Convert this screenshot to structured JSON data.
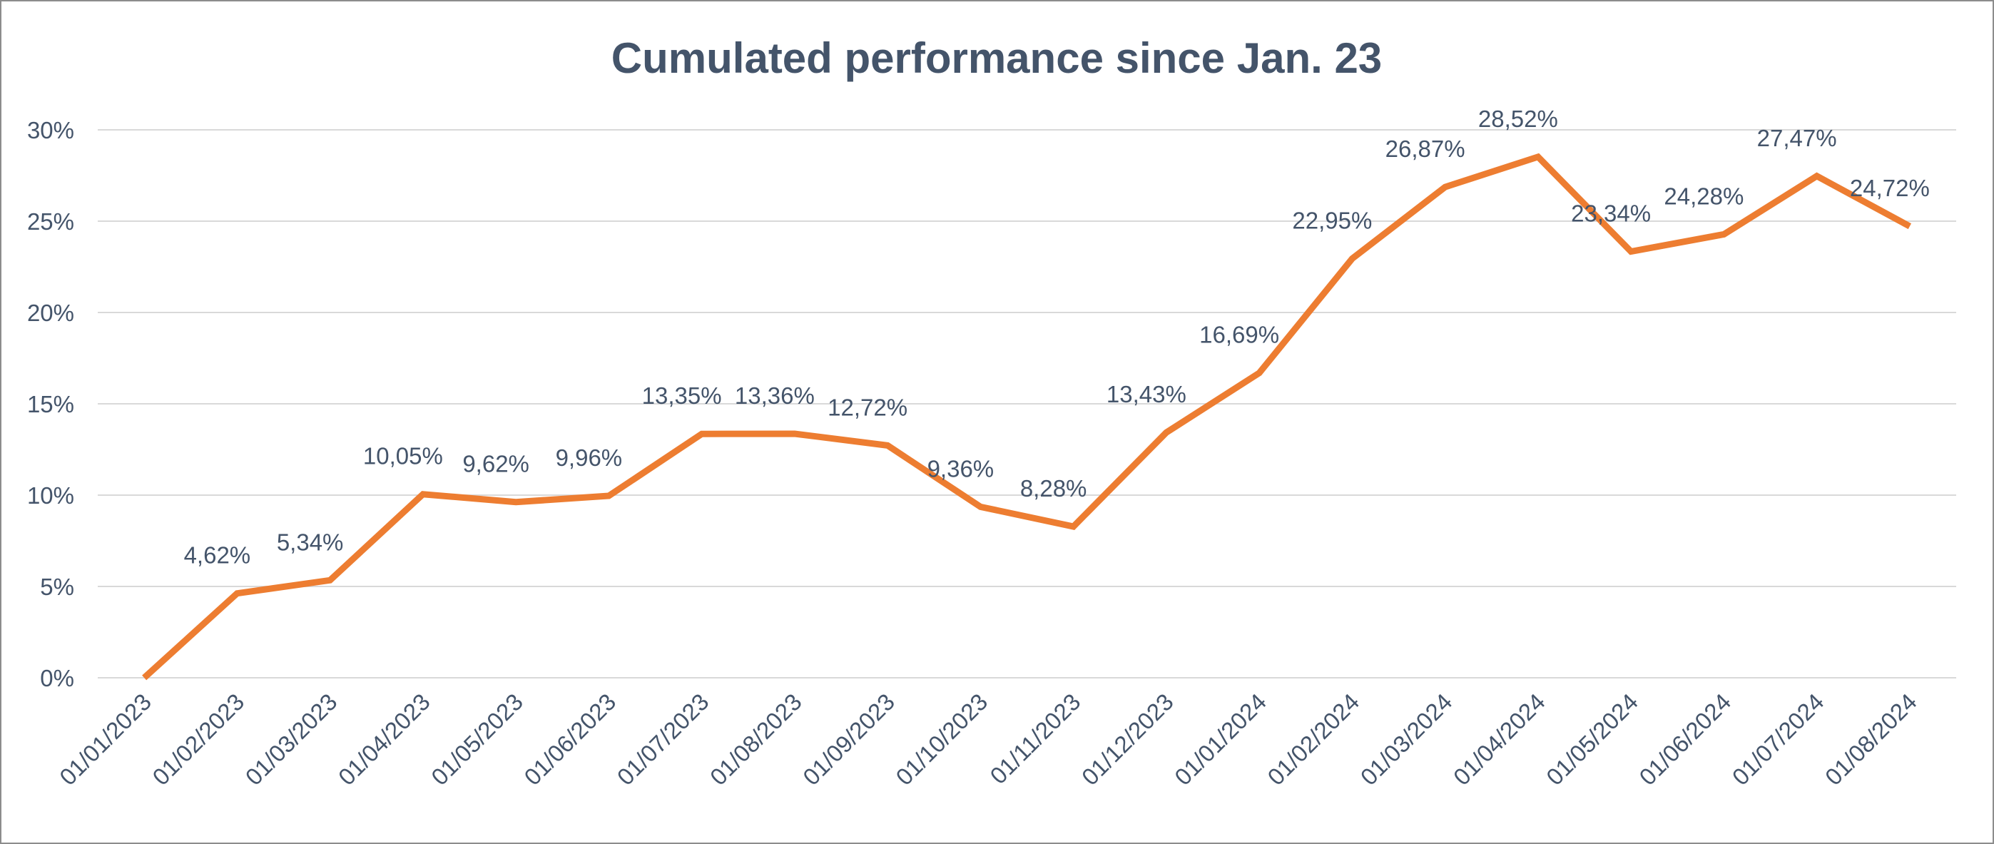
{
  "chart_data": {
    "type": "line",
    "title": "Cumulated performance since Jan. 23",
    "xlabel": "",
    "ylabel": "",
    "ylim": [
      0,
      30
    ],
    "grid": true,
    "legend": "none",
    "y_ticks": [
      "0%",
      "5%",
      "10%",
      "15%",
      "20%",
      "25%",
      "30%"
    ],
    "categories": [
      "01/01/2023",
      "01/02/2023",
      "01/03/2023",
      "01/04/2023",
      "01/05/2023",
      "01/06/2023",
      "01/07/2023",
      "01/08/2023",
      "01/09/2023",
      "01/10/2023",
      "01/11/2023",
      "01/12/2023",
      "01/01/2024",
      "01/02/2024",
      "01/03/2024",
      "01/04/2024",
      "01/05/2024",
      "01/06/2024",
      "01/07/2024",
      "01/08/2024"
    ],
    "series": [
      {
        "color": "#ed7d31",
        "values": [
          0,
          4.62,
          5.34,
          10.05,
          9.62,
          9.96,
          13.35,
          13.36,
          12.72,
          9.36,
          8.28,
          13.43,
          16.69,
          22.95,
          26.87,
          28.52,
          23.34,
          24.28,
          27.47,
          24.72
        ],
        "data_labels": [
          "",
          "4,62%",
          "5,34%",
          "10,05%",
          "9,62%",
          "9,96%",
          "13,35%",
          "13,36%",
          "12,72%",
          "9,36%",
          "8,28%",
          "13,43%",
          "16,69%",
          "22,95%",
          "26,87%",
          "28,52%",
          "23,34%",
          "24,28%",
          "27,47%",
          "24,72%"
        ]
      }
    ],
    "colors": {
      "gridline": "#d9d9d9",
      "text": "#44546a",
      "line": "#ed7d31"
    }
  }
}
